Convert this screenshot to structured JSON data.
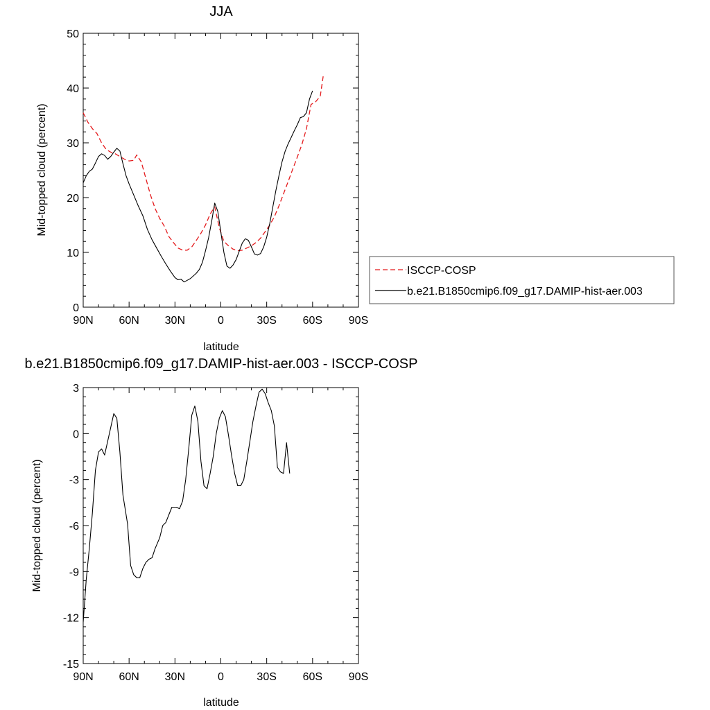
{
  "chart_data": [
    {
      "type": "line",
      "title": "JJA",
      "xlabel": "latitude",
      "ylabel": "Mid-topped cloud (percent)",
      "xlim": [
        90,
        -90
      ],
      "ylim": [
        0,
        50
      ],
      "x_ticks": [
        90,
        60,
        30,
        0,
        -30,
        -60,
        -90
      ],
      "x_tick_labels": [
        "90N",
        "60N",
        "30N",
        "0",
        "30S",
        "60S",
        "90S"
      ],
      "y_ticks": [
        0,
        10,
        20,
        30,
        40,
        50
      ],
      "y_tick_labels": [
        "0",
        "10",
        "20",
        "30",
        "40",
        "50"
      ],
      "legend_position": "right",
      "series": [
        {
          "name": "ISCCP-COSP",
          "color": "#e41a1c",
          "dash": "dashed",
          "points": [
            [
              90,
              35.5
            ],
            [
              87,
              33.8
            ],
            [
              84,
              32.6
            ],
            [
              81,
              31.7
            ],
            [
              78,
              30
            ],
            [
              75,
              28.8
            ],
            [
              72,
              28.3
            ],
            [
              69,
              28
            ],
            [
              66,
              27.5
            ],
            [
              63,
              27
            ],
            [
              60,
              26.7
            ],
            [
              57,
              26.8
            ],
            [
              55,
              27.8
            ],
            [
              52,
              26.5
            ],
            [
              49,
              23.5
            ],
            [
              46,
              20.5
            ],
            [
              43,
              18
            ],
            [
              40,
              16.2
            ],
            [
              37,
              14.8
            ],
            [
              34,
              12.9
            ],
            [
              31,
              11.8
            ],
            [
              28,
              10.8
            ],
            [
              25,
              10.4
            ],
            [
              22,
              10.4
            ],
            [
              19,
              11
            ],
            [
              16,
              12.2
            ],
            [
              13,
              13.5
            ],
            [
              10,
              15
            ],
            [
              7,
              17
            ],
            [
              4,
              18.3
            ],
            [
              1,
              14.5
            ],
            [
              -2,
              12
            ],
            [
              -5,
              11.2
            ],
            [
              -8,
              10.6
            ],
            [
              -11,
              10.3
            ],
            [
              -14,
              10.4
            ],
            [
              -17,
              10.8
            ],
            [
              -20,
              11.2
            ],
            [
              -23,
              11.8
            ],
            [
              -26,
              12.6
            ],
            [
              -29,
              13.8
            ],
            [
              -32,
              15
            ],
            [
              -35,
              16.5
            ],
            [
              -38,
              18.5
            ],
            [
              -41,
              20.7
            ],
            [
              -44,
              22.9
            ],
            [
              -47,
              25.2
            ],
            [
              -50,
              27.4
            ],
            [
              -53,
              29.7
            ],
            [
              -56,
              32.6
            ],
            [
              -59,
              37
            ],
            [
              -62,
              37.5
            ],
            [
              -65,
              38.5
            ],
            [
              -67,
              42.3
            ]
          ]
        },
        {
          "name": "b.e21.B1850cmip6.f09_g17.DAMIP-hist-aer.003",
          "color": "#000000",
          "dash": "solid",
          "points": [
            [
              90,
              22.7
            ],
            [
              88,
              24
            ],
            [
              86,
              24.8
            ],
            [
              84,
              25.2
            ],
            [
              82,
              26.3
            ],
            [
              80,
              27.5
            ],
            [
              78,
              28
            ],
            [
              76,
              27.7
            ],
            [
              74,
              27
            ],
            [
              72,
              27.5
            ],
            [
              70,
              28.3
            ],
            [
              68,
              29
            ],
            [
              66,
              28.5
            ],
            [
              64,
              26.2
            ],
            [
              62,
              24
            ],
            [
              60,
              22.5
            ],
            [
              57,
              20.5
            ],
            [
              54,
              18.5
            ],
            [
              51,
              16.7
            ],
            [
              48,
              14.2
            ],
            [
              45,
              12.3
            ],
            [
              42,
              10.8
            ],
            [
              39,
              9.3
            ],
            [
              36,
              7.9
            ],
            [
              33,
              6.6
            ],
            [
              30,
              5.4
            ],
            [
              28,
              5
            ],
            [
              26,
              5.1
            ],
            [
              24,
              4.6
            ],
            [
              22,
              4.9
            ],
            [
              20,
              5.2
            ],
            [
              18,
              5.7
            ],
            [
              16,
              6.2
            ],
            [
              14,
              6.9
            ],
            [
              12,
              8.2
            ],
            [
              10,
              10.3
            ],
            [
              8,
              12.7
            ],
            [
              6,
              15.7
            ],
            [
              4,
              19
            ],
            [
              2,
              17.5
            ],
            [
              0,
              13.7
            ],
            [
              -2,
              10
            ],
            [
              -4,
              7.5
            ],
            [
              -6,
              7.1
            ],
            [
              -8,
              7.7
            ],
            [
              -10,
              8.7
            ],
            [
              -12,
              10.2
            ],
            [
              -14,
              11.7
            ],
            [
              -16,
              12.5
            ],
            [
              -18,
              12.2
            ],
            [
              -20,
              11
            ],
            [
              -22,
              9.7
            ],
            [
              -24,
              9.5
            ],
            [
              -26,
              9.8
            ],
            [
              -28,
              11
            ],
            [
              -30,
              12.8
            ],
            [
              -32,
              15.3
            ],
            [
              -34,
              18.3
            ],
            [
              -36,
              21.3
            ],
            [
              -38,
              24
            ],
            [
              -40,
              26.5
            ],
            [
              -42,
              28.4
            ],
            [
              -44,
              29.8
            ],
            [
              -46,
              31
            ],
            [
              -48,
              32.2
            ],
            [
              -50,
              33.3
            ],
            [
              -52,
              34.6
            ],
            [
              -54,
              34.8
            ],
            [
              -56,
              35.5
            ],
            [
              -58,
              38
            ],
            [
              -60,
              39.5
            ]
          ]
        }
      ]
    },
    {
      "type": "line",
      "title": "b.e21.B1850cmip6.f09_g17.DAMIP-hist-aer.003 - ISCCP-COSP",
      "xlabel": "latitude",
      "ylabel": "Mid-topped cloud (percent)",
      "xlim": [
        90,
        -90
      ],
      "ylim": [
        -15,
        3
      ],
      "x_ticks": [
        90,
        60,
        30,
        0,
        -30,
        -60,
        -90
      ],
      "x_tick_labels": [
        "90N",
        "60N",
        "30N",
        "0",
        "30S",
        "60S",
        "90S"
      ],
      "y_ticks": [
        -15,
        -12,
        -9,
        -6,
        -3,
        0,
        3
      ],
      "y_tick_labels": [
        "-15",
        "-12",
        "-9",
        "-6",
        "-3",
        "0",
        "3"
      ],
      "series": [
        {
          "color": "#000000",
          "dash": "solid",
          "points": [
            [
              90,
              -12.3
            ],
            [
              88,
              -9.5
            ],
            [
              86,
              -7.5
            ],
            [
              84,
              -5.2
            ],
            [
              82,
              -2.4
            ],
            [
              80,
              -1.2
            ],
            [
              78,
              -1
            ],
            [
              76,
              -1.4
            ],
            [
              74,
              -0.5
            ],
            [
              72,
              0.4
            ],
            [
              70,
              1.3
            ],
            [
              68,
              1
            ],
            [
              66,
              -1.2
            ],
            [
              64,
              -4
            ],
            [
              61,
              -5.9
            ],
            [
              59,
              -8.6
            ],
            [
              57,
              -9.2
            ],
            [
              55,
              -9.4
            ],
            [
              53,
              -9.4
            ],
            [
              51,
              -8.8
            ],
            [
              49,
              -8.4
            ],
            [
              47,
              -8.2
            ],
            [
              45,
              -8.1
            ],
            [
              43,
              -7.5
            ],
            [
              40,
              -6.8
            ],
            [
              38,
              -6
            ],
            [
              36,
              -5.8
            ],
            [
              34,
              -5.3
            ],
            [
              32,
              -4.8
            ],
            [
              29,
              -4.8
            ],
            [
              27,
              -4.9
            ],
            [
              25,
              -4.4
            ],
            [
              23,
              -3
            ],
            [
              21,
              -1
            ],
            [
              19,
              1.2
            ],
            [
              17,
              1.8
            ],
            [
              15,
              0.8
            ],
            [
              13,
              -1.8
            ],
            [
              11,
              -3.4
            ],
            [
              9,
              -3.6
            ],
            [
              7,
              -2.6
            ],
            [
              5,
              -1.5
            ],
            [
              3,
              0
            ],
            [
              1,
              1
            ],
            [
              -1,
              1.5
            ],
            [
              -3,
              1.1
            ],
            [
              -5,
              -0.1
            ],
            [
              -7,
              -1.4
            ],
            [
              -9,
              -2.6
            ],
            [
              -11,
              -3.4
            ],
            [
              -13,
              -3.4
            ],
            [
              -15,
              -3
            ],
            [
              -17,
              -1.8
            ],
            [
              -19,
              -0.5
            ],
            [
              -21,
              0.8
            ],
            [
              -23,
              1.8
            ],
            [
              -25,
              2.7
            ],
            [
              -27,
              2.9
            ],
            [
              -29,
              2.6
            ],
            [
              -31,
              2
            ],
            [
              -33,
              1.5
            ],
            [
              -35,
              0.5
            ],
            [
              -37,
              -2.2
            ],
            [
              -39,
              -2.5
            ],
            [
              -41,
              -2.6
            ],
            [
              -43,
              -0.6
            ],
            [
              -45,
              -2.6
            ]
          ]
        }
      ]
    }
  ]
}
